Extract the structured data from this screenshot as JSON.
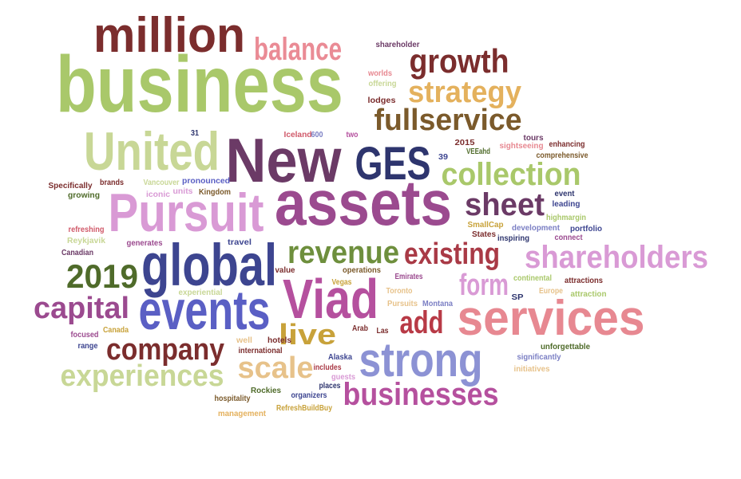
{
  "words": [
    {
      "text": "business",
      "color": "#a9c86a"
    },
    {
      "text": "New",
      "color": "#6b3a66"
    },
    {
      "text": "assets",
      "color": "#9b4a8f"
    },
    {
      "text": "million",
      "color": "#7b2d2d"
    },
    {
      "text": "Pursuit",
      "color": "#d99ad5"
    },
    {
      "text": "United",
      "color": "#c8d796"
    },
    {
      "text": "global",
      "color": "#3d4590"
    },
    {
      "text": "events",
      "color": "#5a5fc4"
    },
    {
      "text": "Viad",
      "color": "#b5509e"
    },
    {
      "text": "services",
      "color": "#e78891"
    },
    {
      "text": "strong",
      "color": "#8c92d4"
    },
    {
      "text": "GES",
      "color": "#2e356e"
    },
    {
      "text": "balance",
      "color": "#ea8b95"
    },
    {
      "text": "growth",
      "color": "#7b2d2d"
    },
    {
      "text": "strategy",
      "color": "#e4b15d"
    },
    {
      "text": "fullservice",
      "color": "#7b5a2b"
    },
    {
      "text": "collection",
      "color": "#a9c86a"
    },
    {
      "text": "sheet",
      "color": "#6b3a66"
    },
    {
      "text": "revenue",
      "color": "#6e8f3d"
    },
    {
      "text": "existing",
      "color": "#a93a46"
    },
    {
      "text": "shareholders",
      "color": "#d99ad5"
    },
    {
      "text": "form",
      "color": "#d99ad5"
    },
    {
      "text": "2019",
      "color": "#4f6b2a"
    },
    {
      "text": "capital",
      "color": "#9b4a8f"
    },
    {
      "text": "company",
      "color": "#7b2d2d"
    },
    {
      "text": "experiences",
      "color": "#c8d796"
    },
    {
      "text": "scale",
      "color": "#e7c28a"
    },
    {
      "text": "live",
      "color": "#c8a23a"
    },
    {
      "text": "add",
      "color": "#b83a46"
    },
    {
      "text": "businesses",
      "color": "#b5509e"
    },
    {
      "text": "shareholder",
      "color": "#6b3a66"
    },
    {
      "text": "worlds",
      "color": "#e78891"
    },
    {
      "text": "offering",
      "color": "#c8d796"
    },
    {
      "text": "lodges",
      "color": "#7b2d2d"
    },
    {
      "text": "includes",
      "color": "#a93a46"
    },
    {
      "text": "Iceland",
      "color": "#d05a6a"
    },
    {
      "text": "600",
      "color": "#7b7fc4"
    },
    {
      "text": "two",
      "color": "#b5509e"
    },
    {
      "text": "31",
      "color": "#2e356e"
    },
    {
      "text": "2015",
      "color": "#7b2d2d"
    },
    {
      "text": "39",
      "color": "#3d4590"
    },
    {
      "text": "VEEahd",
      "color": "#4f6b2a"
    },
    {
      "text": "sightseeing",
      "color": "#e78891"
    },
    {
      "text": "tours",
      "color": "#6b3a66"
    },
    {
      "text": "enhancing",
      "color": "#7b2d2d"
    },
    {
      "text": "comprehensive",
      "color": "#7b5a2b"
    },
    {
      "text": "Specifically",
      "color": "#7b2d2d"
    },
    {
      "text": "brands",
      "color": "#7b2d2d"
    },
    {
      "text": "Vancouver",
      "color": "#c8d796"
    },
    {
      "text": "pronounced",
      "color": "#5a5fc4"
    },
    {
      "text": "iconic",
      "color": "#d99ad5"
    },
    {
      "text": "units",
      "color": "#d99ad5"
    },
    {
      "text": "Kingdom",
      "color": "#7b5a2b"
    },
    {
      "text": "growing",
      "color": "#4f6b2a"
    },
    {
      "text": "refreshing",
      "color": "#d05a6a"
    },
    {
      "text": "generates",
      "color": "#9b4a8f"
    },
    {
      "text": "Reykjavik",
      "color": "#c8d796"
    },
    {
      "text": "Canadian",
      "color": "#6b3a66"
    },
    {
      "text": "travel",
      "color": "#3d4590"
    },
    {
      "text": "SmallCap",
      "color": "#c8a23a"
    },
    {
      "text": "development",
      "color": "#7b7fc4"
    },
    {
      "text": "portfolio",
      "color": "#3d4590"
    },
    {
      "text": "event",
      "color": "#2e356e"
    },
    {
      "text": "leading",
      "color": "#3d4590"
    },
    {
      "text": "highmargin",
      "color": "#a9c86a"
    },
    {
      "text": "States",
      "color": "#7b2d2d"
    },
    {
      "text": "inspiring",
      "color": "#2e356e"
    },
    {
      "text": "connect",
      "color": "#9b4a8f"
    },
    {
      "text": "value",
      "color": "#7b2d2d"
    },
    {
      "text": "operations",
      "color": "#7b5a2b"
    },
    {
      "text": "experiential",
      "color": "#c8d796"
    },
    {
      "text": "Vegas",
      "color": "#c8a23a"
    },
    {
      "text": "Emirates",
      "color": "#9b4a8f"
    },
    {
      "text": "continental",
      "color": "#a9c86a"
    },
    {
      "text": "attractions",
      "color": "#7b2d2d"
    },
    {
      "text": "Toronto",
      "color": "#e7c28a"
    },
    {
      "text": "Europe",
      "color": "#e7c28a"
    },
    {
      "text": "SP",
      "color": "#2e356e"
    },
    {
      "text": "attraction",
      "color": "#a9c86a"
    },
    {
      "text": "Pursuits",
      "color": "#e7c28a"
    },
    {
      "text": "Montana",
      "color": "#7b7fc4"
    },
    {
      "text": "Canada",
      "color": "#c8a23a"
    },
    {
      "text": "focused",
      "color": "#9b4a8f"
    },
    {
      "text": "range",
      "color": "#3d4590"
    },
    {
      "text": "Arab",
      "color": "#7b2d2d"
    },
    {
      "text": "Las",
      "color": "#7b2d2d"
    },
    {
      "text": "well",
      "color": "#e7c28a"
    },
    {
      "text": "hotels",
      "color": "#7b2d2d"
    },
    {
      "text": "international",
      "color": "#7b2d2d"
    },
    {
      "text": "Alaska",
      "color": "#3d4590"
    },
    {
      "text": "guests",
      "color": "#d99ad5"
    },
    {
      "text": "places",
      "color": "#2e356e"
    },
    {
      "text": "unforgettable",
      "color": "#4f6b2a"
    },
    {
      "text": "significantly",
      "color": "#7b7fc4"
    },
    {
      "text": "initiatives",
      "color": "#e7c28a"
    },
    {
      "text": "hospitality",
      "color": "#7b5a2b"
    },
    {
      "text": "Rockies",
      "color": "#4f6b2a"
    },
    {
      "text": "organizers",
      "color": "#3d4590"
    },
    {
      "text": "management",
      "color": "#e4b15d"
    },
    {
      "text": "RefreshBuildBuy",
      "color": "#c8a23a"
    }
  ]
}
